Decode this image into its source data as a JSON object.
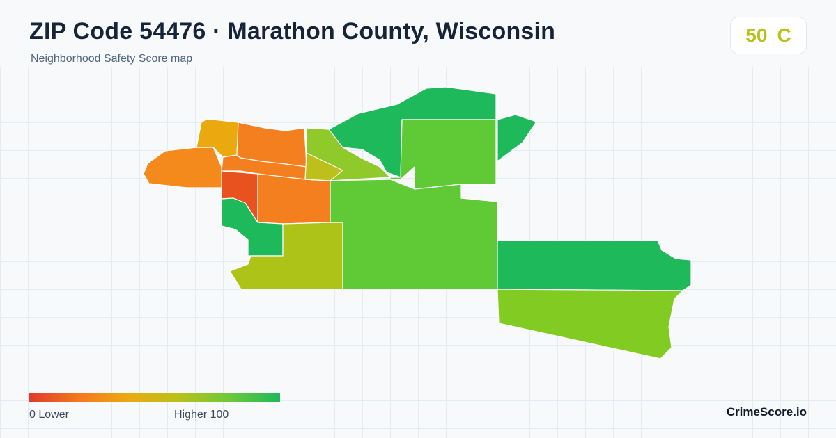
{
  "header": {
    "title": "ZIP Code 54476 · Marathon County, Wisconsin",
    "subtitle": "Neighborhood Safety Score map"
  },
  "score_card": {
    "score": "50",
    "grade": "C",
    "color": "#b8c11a"
  },
  "legend": {
    "min_label": "0  Lower",
    "max_label": "Higher  100",
    "gradient_colors": [
      "#e03a2a",
      "#f47a1e",
      "#eaaa10",
      "#b8c11a",
      "#6cc93a",
      "#1db95a"
    ]
  },
  "map": {
    "regions": [
      {
        "name": "west-region",
        "color": "#f48a1c"
      },
      {
        "name": "northwest-region",
        "color": "#eaa90e"
      },
      {
        "name": "north-central-region",
        "color": "#f47f1f"
      },
      {
        "name": "central-strip-region",
        "color": "#f47f1f"
      },
      {
        "name": "west-central-region",
        "color": "#e8521f"
      },
      {
        "name": "central-region",
        "color": "#f47f1f"
      },
      {
        "name": "southwest-region",
        "color": "#1db95a"
      },
      {
        "name": "south-region",
        "color": "#adc318"
      },
      {
        "name": "north-middle-region",
        "color": "#8fc92a"
      },
      {
        "name": "small-central-region",
        "color": "#bdc01a"
      },
      {
        "name": "north-region",
        "color": "#1db95a"
      },
      {
        "name": "east-central-region",
        "color": "#5fca36"
      },
      {
        "name": "large-central-region",
        "color": "#5fca36"
      },
      {
        "name": "far-northeast-region",
        "color": "#1db95a"
      },
      {
        "name": "east-region",
        "color": "#1db95a"
      },
      {
        "name": "southeast-region",
        "color": "#82cb22"
      }
    ]
  },
  "brand": "CrimeScore.io"
}
